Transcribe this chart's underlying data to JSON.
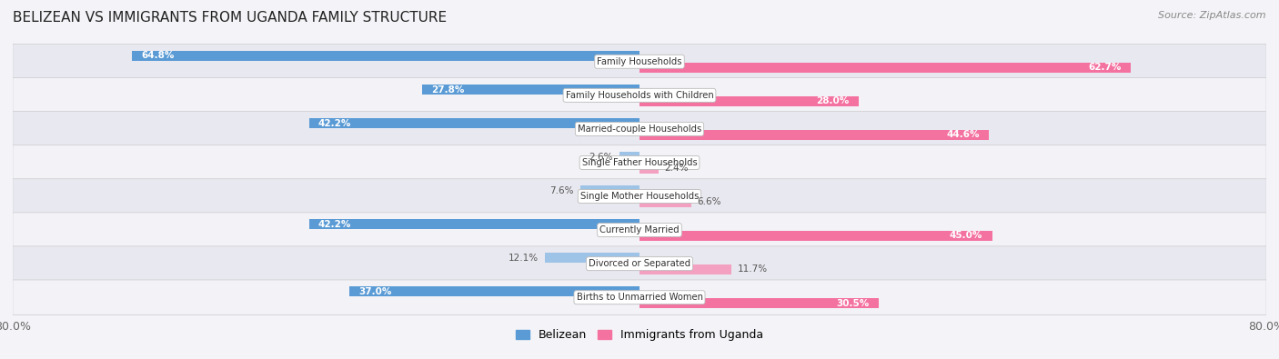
{
  "title": "BELIZEAN VS IMMIGRANTS FROM UGANDA FAMILY STRUCTURE",
  "source": "Source: ZipAtlas.com",
  "categories": [
    "Family Households",
    "Family Households with Children",
    "Married-couple Households",
    "Single Father Households",
    "Single Mother Households",
    "Currently Married",
    "Divorced or Separated",
    "Births to Unmarried Women"
  ],
  "belizean_values": [
    64.8,
    27.8,
    42.2,
    2.6,
    7.6,
    42.2,
    12.1,
    37.0
  ],
  "uganda_values": [
    62.7,
    28.0,
    44.6,
    2.4,
    6.6,
    45.0,
    11.7,
    30.5
  ],
  "max_value": 80.0,
  "belizean_color_dark": "#5b9bd5",
  "belizean_color_light": "#9dc3e6",
  "uganda_color_dark": "#f472a0",
  "uganda_color_light": "#f4a0c0",
  "row_colors": [
    "#e8e8f0",
    "#f2f2f7"
  ],
  "axis_label_left": "80.0%",
  "axis_label_right": "80.0%",
  "legend_belizean": "Belizean",
  "legend_uganda": "Immigrants from Uganda",
  "threshold_dark": 20.0
}
